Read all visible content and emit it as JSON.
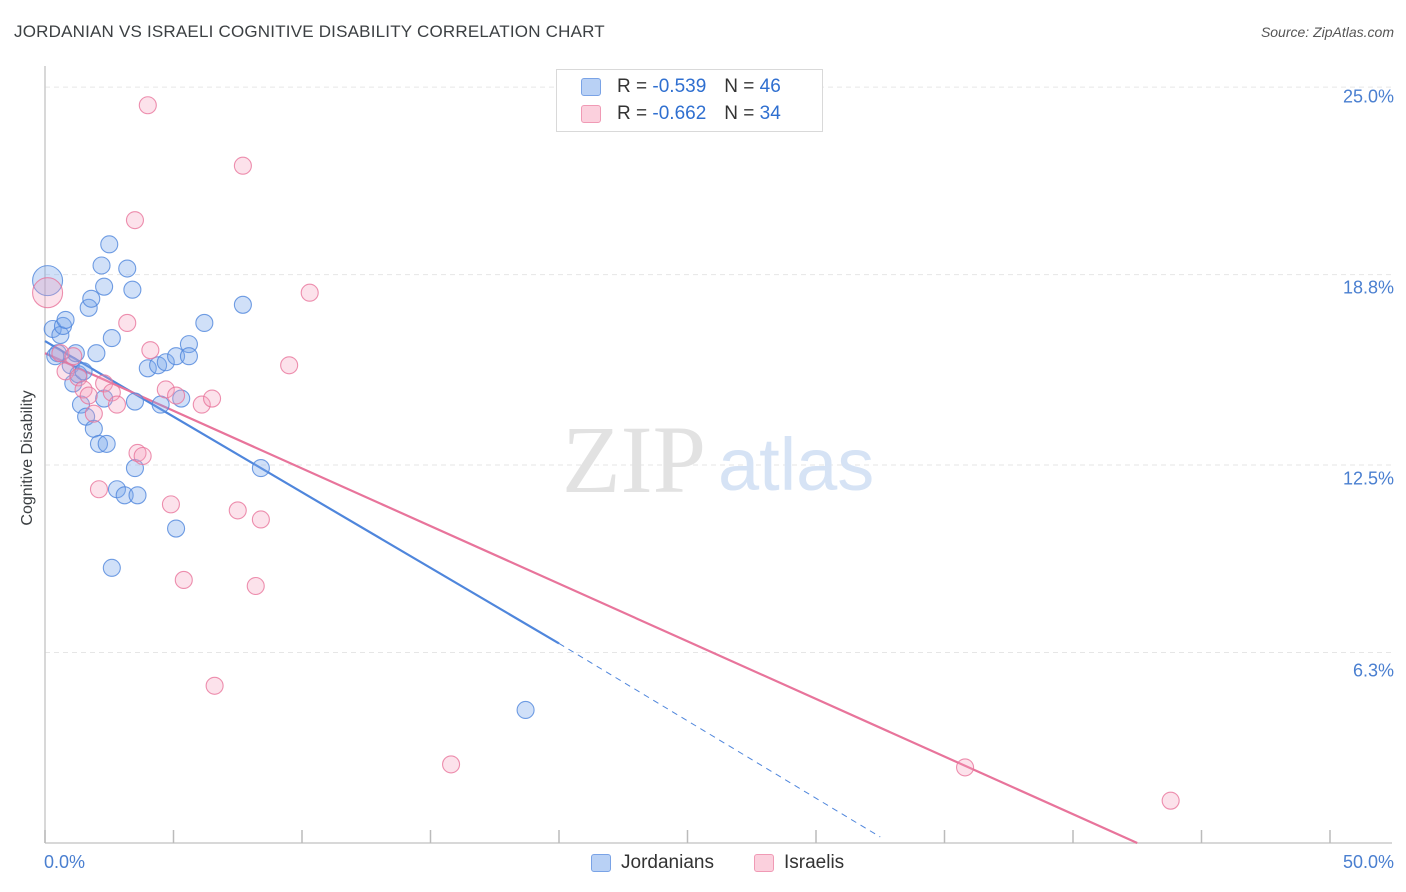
{
  "header": {
    "title": "JORDANIAN VS ISRAELI COGNITIVE DISABILITY CORRELATION CHART",
    "source": "Source: ZipAtlas.com"
  },
  "watermark": {
    "zip": "ZIP",
    "atlas": "atlas"
  },
  "legend": {
    "rows": [
      {
        "r_label": "R =",
        "r_value": "-0.539",
        "n_label": "N =",
        "n_value": "46"
      },
      {
        "r_label": "R =",
        "r_value": "-0.662",
        "n_label": "N =",
        "n_value": "34"
      }
    ],
    "bottom": [
      "Jordanians",
      "Israelis"
    ]
  },
  "colors": {
    "jordanians": "#4f86dc",
    "israelis": "#e8749b",
    "tick_text": "#4a7fd0",
    "grid": "#e6e6e6"
  },
  "chart_data": {
    "type": "scatter",
    "title": "JORDANIAN VS ISRAELI COGNITIVE DISABILITY CORRELATION CHART",
    "xlabel": "",
    "ylabel": "Cognitive Disability",
    "xlim": [
      0,
      50
    ],
    "ylim": [
      0,
      25.5
    ],
    "x_tick_labels": [
      "0.0%",
      "50.0%"
    ],
    "y_ticks": [
      {
        "value": 25.0,
        "label": "25.0%"
      },
      {
        "value": 18.8,
        "label": "18.8%"
      },
      {
        "value": 12.5,
        "label": "12.5%"
      },
      {
        "value": 6.3,
        "label": "6.3%"
      }
    ],
    "series": [
      {
        "name": "Jordanians",
        "r": -0.539,
        "n": 46,
        "points": [
          [
            0.1,
            18.6
          ],
          [
            0.3,
            17.0
          ],
          [
            0.5,
            16.2
          ],
          [
            0.6,
            16.8
          ],
          [
            0.7,
            17.1
          ],
          [
            0.8,
            17.3
          ],
          [
            1.0,
            15.8
          ],
          [
            1.1,
            15.2
          ],
          [
            1.2,
            16.2
          ],
          [
            1.3,
            15.5
          ],
          [
            1.4,
            14.5
          ],
          [
            1.5,
            15.6
          ],
          [
            1.6,
            14.1
          ],
          [
            1.7,
            17.7
          ],
          [
            1.8,
            18.0
          ],
          [
            1.9,
            13.7
          ],
          [
            2.0,
            16.2
          ],
          [
            2.1,
            13.2
          ],
          [
            2.2,
            19.1
          ],
          [
            2.3,
            14.7
          ],
          [
            2.4,
            13.2
          ],
          [
            2.5,
            19.8
          ],
          [
            2.3,
            18.4
          ],
          [
            2.6,
            16.7
          ],
          [
            2.8,
            11.7
          ],
          [
            3.1,
            11.5
          ],
          [
            2.6,
            9.1
          ],
          [
            3.2,
            19.0
          ],
          [
            3.4,
            18.3
          ],
          [
            3.5,
            14.6
          ],
          [
            3.5,
            12.4
          ],
          [
            3.6,
            11.5
          ],
          [
            4.0,
            15.7
          ],
          [
            4.4,
            15.8
          ],
          [
            4.5,
            14.5
          ],
          [
            4.7,
            15.9
          ],
          [
            5.1,
            16.1
          ],
          [
            5.3,
            14.7
          ],
          [
            5.1,
            10.4
          ],
          [
            5.6,
            16.5
          ],
          [
            5.6,
            16.1
          ],
          [
            6.2,
            17.2
          ],
          [
            7.7,
            17.8
          ],
          [
            8.4,
            12.4
          ],
          [
            18.7,
            4.4
          ],
          [
            0.4,
            16.1
          ]
        ]
      },
      {
        "name": "Israelis",
        "r": -0.662,
        "n": 34,
        "points": [
          [
            0.1,
            18.2
          ],
          [
            0.6,
            16.2
          ],
          [
            0.8,
            15.6
          ],
          [
            1.1,
            16.1
          ],
          [
            1.3,
            15.4
          ],
          [
            1.5,
            15.0
          ],
          [
            1.7,
            14.8
          ],
          [
            1.9,
            14.2
          ],
          [
            2.1,
            11.7
          ],
          [
            2.3,
            15.2
          ],
          [
            2.6,
            14.9
          ],
          [
            2.8,
            14.5
          ],
          [
            3.2,
            17.2
          ],
          [
            3.5,
            20.6
          ],
          [
            3.6,
            12.9
          ],
          [
            3.8,
            12.8
          ],
          [
            4.0,
            24.4
          ],
          [
            4.1,
            16.3
          ],
          [
            4.7,
            15.0
          ],
          [
            4.9,
            11.2
          ],
          [
            5.1,
            14.8
          ],
          [
            5.4,
            8.7
          ],
          [
            6.1,
            14.5
          ],
          [
            6.5,
            14.7
          ],
          [
            6.6,
            5.2
          ],
          [
            7.5,
            11.0
          ],
          [
            7.7,
            22.4
          ],
          [
            8.2,
            8.5
          ],
          [
            8.4,
            10.7
          ],
          [
            9.5,
            15.8
          ],
          [
            10.3,
            18.2
          ],
          [
            15.8,
            2.6
          ],
          [
            35.8,
            2.5
          ],
          [
            43.8,
            1.4
          ]
        ]
      }
    ],
    "trend_lines": [
      {
        "series": "Jordanians",
        "x": [
          0,
          20
        ],
        "y": [
          16.6,
          6.6
        ],
        "dashed_extension_to": [
          32.5,
          0.2
        ]
      },
      {
        "series": "Israelis",
        "x": [
          0,
          42.5
        ],
        "y": [
          16.2,
          0
        ]
      }
    ]
  }
}
